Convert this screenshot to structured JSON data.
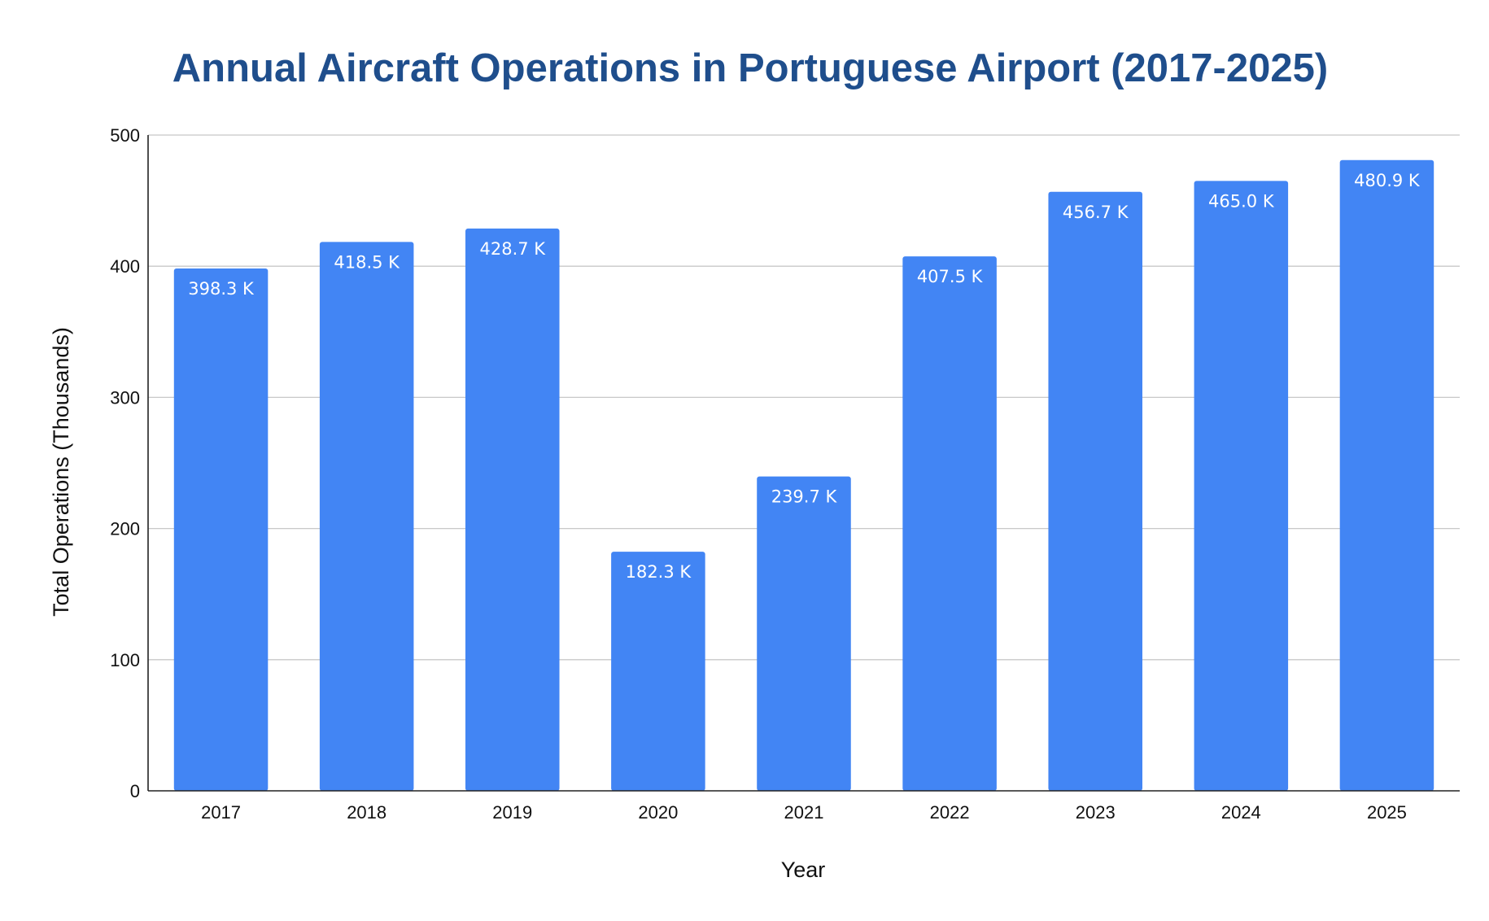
{
  "chart_data": {
    "type": "bar",
    "title": "Annual Aircraft Operations in Portuguese Airport (2017-2025)",
    "xlabel": "Year",
    "ylabel": "Total Operations (Thousands)",
    "categories": [
      "2017",
      "2018",
      "2019",
      "2020",
      "2021",
      "2022",
      "2023",
      "2024",
      "2025"
    ],
    "values": [
      398.3,
      418.5,
      428.7,
      182.3,
      239.7,
      407.5,
      456.7,
      465.0,
      480.9
    ],
    "data_labels": [
      "398.3 K",
      "418.5 K",
      "428.7 K",
      "182.3 K",
      "239.7 K",
      "407.5 K",
      "456.7 K",
      "465.0 K",
      "480.9 K"
    ],
    "ylim": [
      0,
      500
    ],
    "yticks": [
      0,
      100,
      200,
      300,
      400,
      500
    ],
    "grid": true,
    "legend": "none",
    "colors": {
      "bar": "#4285f4",
      "title": "#1f4e8c",
      "gridline": "#c8c8c8",
      "axis": "#222222",
      "data_label": "#ffffff"
    }
  }
}
